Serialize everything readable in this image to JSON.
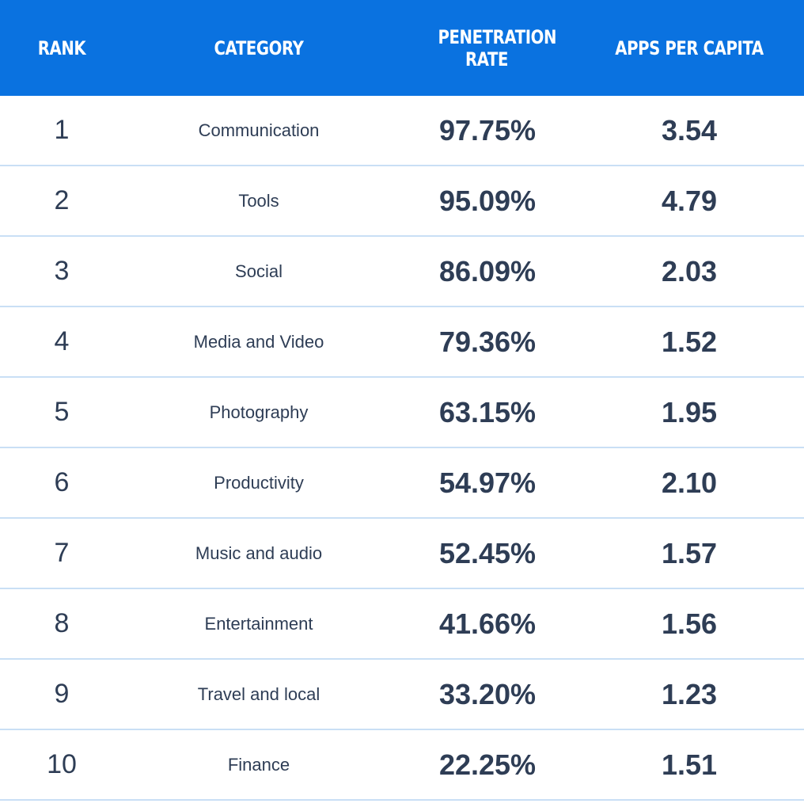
{
  "chart_data": {
    "type": "table",
    "columns": [
      "RANK",
      "CATEGORY",
      "PENETRATION RATE",
      "APPS PER CAPITA"
    ],
    "rows": [
      {
        "rank": "1",
        "category": "Communication",
        "penetration": "97.75%",
        "apps": "3.54"
      },
      {
        "rank": "2",
        "category": "Tools",
        "penetration": "95.09%",
        "apps": "4.79"
      },
      {
        "rank": "3",
        "category": "Social",
        "penetration": "86.09%",
        "apps": "2.03"
      },
      {
        "rank": "4",
        "category": "Media and Video",
        "penetration": "79.36%",
        "apps": "1.52"
      },
      {
        "rank": "5",
        "category": "Photography",
        "penetration": "63.15%",
        "apps": "1.95"
      },
      {
        "rank": "6",
        "category": "Productivity",
        "penetration": "54.97%",
        "apps": "2.10"
      },
      {
        "rank": "7",
        "category": "Music and audio",
        "penetration": "52.45%",
        "apps": "1.57"
      },
      {
        "rank": "8",
        "category": "Entertainment",
        "penetration": "41.66%",
        "apps": "1.56"
      },
      {
        "rank": "9",
        "category": "Travel and local",
        "penetration": "33.20%",
        "apps": "1.23"
      },
      {
        "rank": "10",
        "category": "Finance",
        "penetration": "22.25%",
        "apps": "1.51"
      }
    ]
  },
  "colors": {
    "header_bg": "#0a72e0",
    "header_text": "#ffffff",
    "body_text": "#33425a",
    "row_divider": "#c9dff5"
  }
}
